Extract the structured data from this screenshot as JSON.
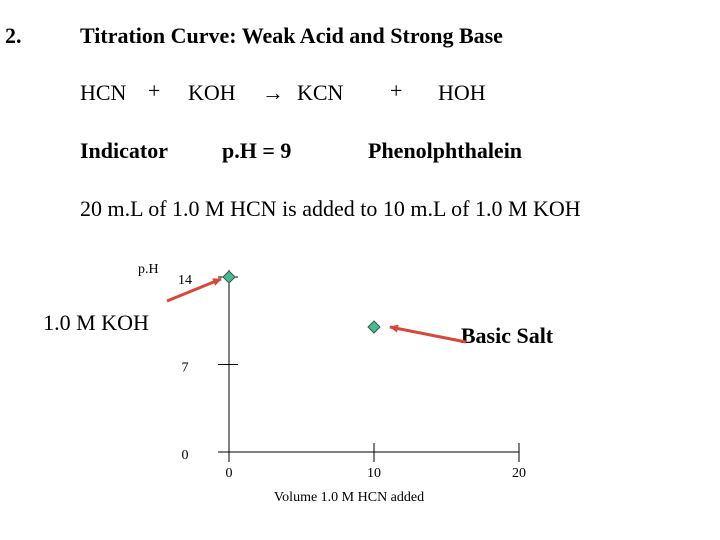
{
  "header": {
    "number": "2.",
    "title": "Titration Curve: Weak Acid and Strong Base"
  },
  "equation": [
    "HCN",
    "+",
    "KOH",
    "→",
    "KCN",
    "+",
    "HOH"
  ],
  "indicator": {
    "label": "Indicator",
    "ph": "p.H = 9",
    "name": "Phenolphthalein"
  },
  "statement": "20 m.L of 1.0 M HCN is added to 10 m.L of 1.0 M KOH",
  "chart_data": {
    "type": "scatter",
    "x": [
      0,
      10
    ],
    "values": [
      14,
      10
    ],
    "color": "#4db88f",
    "xlim": [
      0,
      20
    ],
    "xticks": [
      0,
      10,
      20
    ],
    "ylim": [
      0,
      14
    ],
    "yticks": [
      0,
      7,
      14
    ],
    "xlabel": "Volume 1.0 M HCN added",
    "ylabel": "p.H",
    "annotations": [
      "1.0 M KOH",
      "Basic Salt"
    ]
  }
}
